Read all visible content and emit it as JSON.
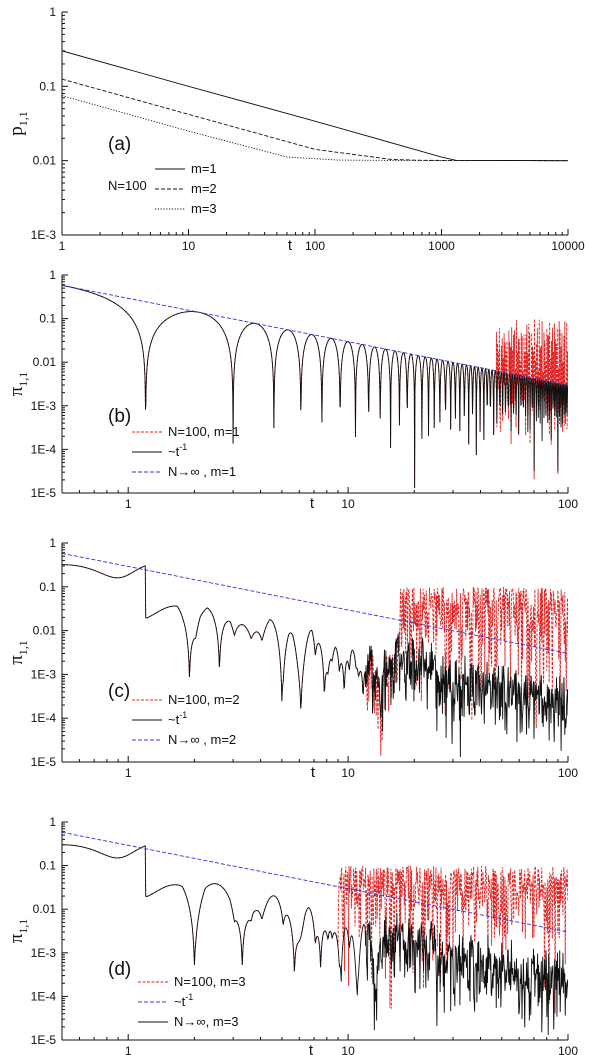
{
  "chart_data": [
    {
      "type": "line",
      "panel_label": "(a)",
      "ylabel": {
        "base": "p",
        "sub": "1,1"
      },
      "xlabel": "t",
      "xscale": "log",
      "yscale": "log",
      "xlim": [
        1,
        10000
      ],
      "ylim": [
        0.001,
        1
      ],
      "x_ticks": [
        "1",
        "10",
        "100",
        "1000",
        "10000"
      ],
      "y_ticks": [
        "1E-3",
        "0.01",
        "0.1",
        "1"
      ],
      "annotation": "N=100",
      "legend": {
        "location": "lower-center",
        "entries": [
          "m=1",
          "m=2",
          "m=3"
        ]
      },
      "series": [
        {
          "name": "m=1",
          "x": [
            1,
            10,
            100,
            1000,
            1300,
            10000
          ],
          "values": [
            0.3,
            0.1,
            0.034,
            0.0112,
            0.0101,
            0.01
          ]
        },
        {
          "name": "m=2",
          "x": [
            1,
            10,
            100,
            400,
            700,
            10000
          ],
          "values": [
            0.125,
            0.042,
            0.0142,
            0.0104,
            0.0101,
            0.01
          ]
        },
        {
          "name": "m=3",
          "x": [
            1,
            10,
            60,
            150,
            300,
            10000
          ],
          "values": [
            0.075,
            0.025,
            0.0112,
            0.0102,
            0.0101,
            0.01
          ]
        }
      ]
    },
    {
      "type": "line",
      "panel_label": "(b)",
      "ylabel": {
        "base": "π",
        "sub": "1,1"
      },
      "xlabel": "t",
      "xscale": "log",
      "yscale": "log",
      "xlim": [
        0.5,
        100
      ],
      "ylim": [
        1e-05,
        1
      ],
      "x_ticks": [
        "1",
        "10",
        "100"
      ],
      "y_ticks": [
        "1E-5",
        "1E-4",
        "1E-3",
        "0.01",
        "0.1",
        "1"
      ],
      "legend": {
        "location": "lower-left",
        "entries": [
          "N=100, m=1",
          "~t",
          "N→∞ ,  m=1"
        ],
        "superscripts": [
          "",
          "-1",
          ""
        ]
      },
      "series": [
        {
          "name": "N=100, m=1",
          "model": "oscillating",
          "zeros": [
            1.2,
            3.0,
            4.6,
            6.1,
            7.6,
            9.2,
            10.8,
            12.4,
            14.0,
            15.6
          ],
          "decay": 0.3,
          "envelope_amp": 0.58,
          "envelope_end": 0.003,
          "fluct_from": 47,
          "fluct_max": 0.1
        },
        {
          "name": "~t-1",
          "model": "oscillating",
          "zeros": [
            1.2,
            3.0,
            4.6,
            6.1,
            7.6,
            9.2,
            10.8,
            12.4,
            14.0,
            15.6
          ],
          "decay": 0.3,
          "envelope_amp": 0.58,
          "envelope_end": 0.003
        },
        {
          "name": "N→∞ , m=1",
          "x": [
            0.5,
            100
          ],
          "values": [
            0.58,
            0.003
          ]
        }
      ]
    },
    {
      "type": "line",
      "panel_label": "(c)",
      "ylabel": {
        "base": "π",
        "sub": "1,1"
      },
      "xlabel": "t",
      "xscale": "log",
      "yscale": "log",
      "xlim": [
        0.5,
        100
      ],
      "ylim": [
        1e-05,
        1
      ],
      "x_ticks": [
        "1",
        "10",
        "100"
      ],
      "y_ticks": [
        "1E-5",
        "1E-4",
        "1E-3",
        "0.01",
        "0.1",
        "1"
      ],
      "legend": {
        "location": "lower-left",
        "entries": [
          "N=100, m=2",
          "~t",
          "N→∞ ,  m=2"
        ],
        "superscripts": [
          "",
          "-1",
          ""
        ]
      },
      "series": [
        {
          "name": "N=100, m=2",
          "model": "noisy",
          "dips": [
            1.9,
            2.6,
            5.0,
            6.1,
            7.8,
            9.6,
            11.7,
            14.0
          ],
          "start_value": 0.32,
          "envelope_amp": 0.58,
          "envelope_end": 0.003,
          "fluct_from": 17,
          "fluct_max": 0.1
        },
        {
          "name": "~t-1",
          "model": "noisy",
          "dips": [
            1.9,
            2.6,
            5.0,
            6.1,
            7.8,
            9.6,
            11.7,
            14.0
          ],
          "start_value": 0.32,
          "envelope_amp": 0.58,
          "envelope_end": 0.003
        },
        {
          "name": "N→∞ , m=2",
          "x": [
            0.5,
            100
          ],
          "values": [
            0.58,
            0.003
          ]
        }
      ]
    },
    {
      "type": "line",
      "panel_label": "(d)",
      "ylabel": {
        "base": "π",
        "sub": "1,1"
      },
      "xlabel": "t",
      "xscale": "log",
      "yscale": "log",
      "xlim": [
        0.5,
        100
      ],
      "ylim": [
        1e-05,
        1
      ],
      "x_ticks": [
        "1",
        "10",
        "100"
      ],
      "y_ticks": [
        "1E-5",
        "1E-4",
        "1E-3",
        "0.01",
        "0.1",
        "1"
      ],
      "legend": {
        "location": "lower-left",
        "entries": [
          "N=100, m=3",
          "~t",
          "N→∞,  m=3"
        ],
        "superscripts": [
          "",
          "-1",
          ""
        ]
      },
      "series": [
        {
          "name": "N=100, m=3",
          "model": "noisy",
          "dips": [
            2.0,
            3.3,
            5.7,
            7.5,
            9.3,
            11.0,
            13.4
          ],
          "start_value": 0.3,
          "envelope_amp": 0.58,
          "envelope_end": 0.003,
          "fluct_from": 9,
          "fluct_max": 0.1
        },
        {
          "name": "~t-1",
          "x": [
            0.5,
            100
          ],
          "values": [
            0.58,
            0.003
          ]
        },
        {
          "name": "N→∞ , m=3",
          "model": "noisy",
          "dips": [
            2.0,
            3.3,
            5.7,
            7.5,
            9.3,
            11.0,
            13.4
          ],
          "start_value": 0.3,
          "envelope_amp": 0.58,
          "envelope_end": 0.003
        }
      ]
    }
  ],
  "colors": {
    "axis": "#111111",
    "black_series": "#111111",
    "red_series": "#e02020",
    "blue_series": "#3333dd"
  }
}
